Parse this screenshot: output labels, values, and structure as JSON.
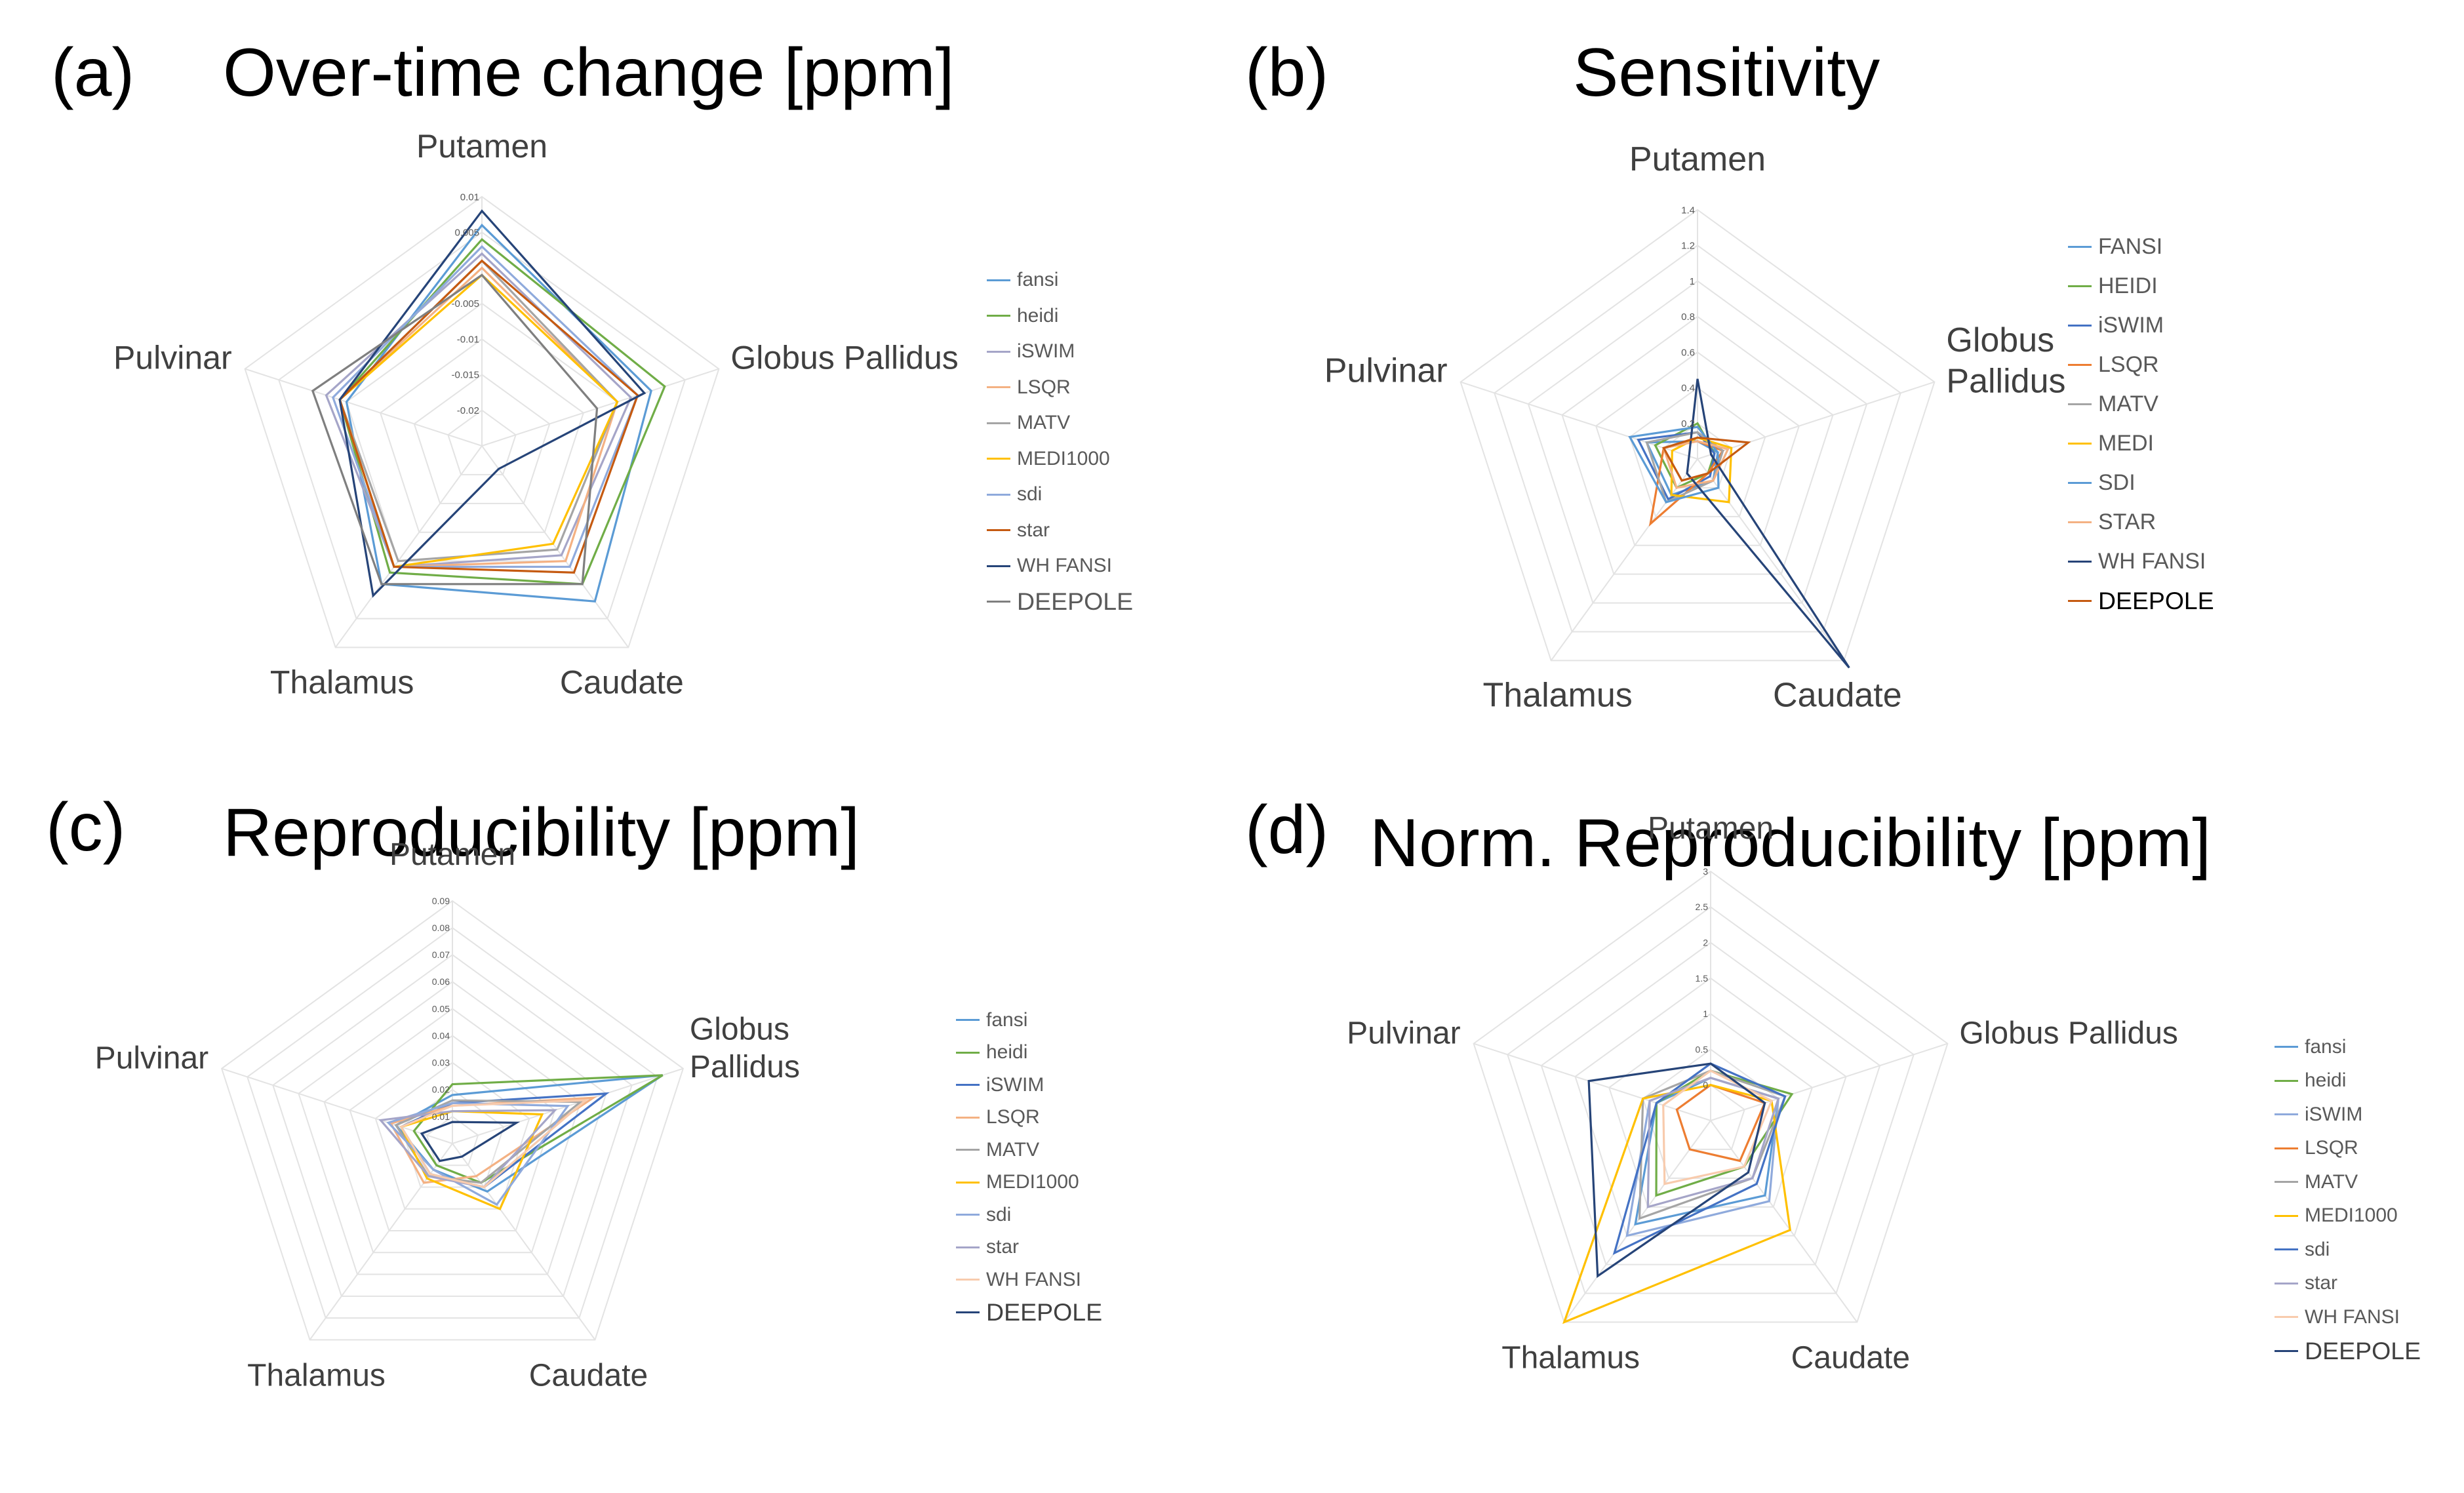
{
  "chart_data": [
    {
      "panel": "(a)",
      "type": "radar",
      "title": "Over-time change [ppm]",
      "categories": [
        "Putamen",
        "Globus Pallidus",
        "Caudate",
        "Thalamus",
        "Pulvinar"
      ],
      "rmin": -0.025,
      "rmax": 0.01,
      "ticks": [
        0.01,
        0.005,
        -0.005,
        -0.01,
        -0.015,
        -0.02
      ],
      "tick_labels": [
        "0.01",
        "0.005",
        "-0.005",
        "-0.01",
        "-0.015",
        "-0.02"
      ],
      "series": [
        {
          "name": "fansi",
          "color": "#5B9BD5",
          "values": [
            0.006,
            0.0,
            0.002,
            -0.001,
            -0.005
          ]
        },
        {
          "name": "heidi",
          "color": "#70AD47",
          "values": [
            0.004,
            0.002,
            -0.001,
            -0.003,
            -0.004
          ]
        },
        {
          "name": "iSWIM",
          "color": "#A5A5C8",
          "values": [
            0.002,
            -0.003,
            -0.006,
            -0.004,
            -0.002
          ]
        },
        {
          "name": "LSQR",
          "color": "#F4B183",
          "values": [
            0.0,
            -0.005,
            -0.005,
            -0.004,
            -0.004
          ]
        },
        {
          "name": "MATV",
          "color": "#A5A5A5",
          "values": [
            0.001,
            -0.005,
            -0.007,
            -0.005,
            -0.004
          ]
        },
        {
          "name": "MEDI1000",
          "color": "#FFC000",
          "values": [
            -0.001,
            -0.005,
            -0.008,
            -0.004,
            -0.004
          ]
        },
        {
          "name": "sdi",
          "color": "#8FAADC",
          "values": [
            0.003,
            -0.002,
            -0.004,
            -0.004,
            -0.003
          ]
        },
        {
          "name": "star",
          "color": "#C55A11",
          "values": [
            0.001,
            -0.002,
            -0.003,
            -0.004,
            -0.004
          ]
        },
        {
          "name": "WH FANSI",
          "color": "#264478",
          "values": [
            0.008,
            -0.001,
            -0.021,
            0.001,
            -0.004
          ]
        },
        {
          "name": "DEEPOLE",
          "color": "#7F7F7F",
          "values": [
            -0.001,
            -0.008,
            -0.001,
            -0.001,
            0.0
          ]
        }
      ],
      "legend_last_large": true
    },
    {
      "panel": "(b)",
      "type": "radar",
      "title": "Sensitivity",
      "categories": [
        "Putamen",
        "Globus Pallidus",
        "Caudate",
        "Thalamus",
        "Pulvinar"
      ],
      "cat_labels": [
        "Putamen",
        "Globus\nPallidus",
        "Caudate",
        "Thalamus",
        "Pulvinar"
      ],
      "rmin": 0,
      "rmax": 1.4,
      "ticks": [
        1.4,
        1.2,
        1,
        0.8,
        0.6,
        0.4,
        0.2
      ],
      "tick_labels": [
        "1.4",
        "1.2",
        "1",
        "0.8",
        "0.6",
        "0.4",
        "0.2"
      ],
      "series": [
        {
          "name": "FANSI",
          "color": "#5B9BD5",
          "values": [
            0.1,
            0.12,
            0.15,
            0.25,
            0.3
          ]
        },
        {
          "name": "HEIDI",
          "color": "#70AD47",
          "values": [
            0.2,
            0.1,
            0.1,
            0.2,
            0.25
          ]
        },
        {
          "name": "iSWIM",
          "color": "#4472C4",
          "values": [
            0.15,
            0.1,
            0.12,
            0.28,
            0.35
          ]
        },
        {
          "name": "LSQR",
          "color": "#ED7D31",
          "values": [
            0.1,
            0.15,
            0.1,
            0.45,
            0.2
          ]
        },
        {
          "name": "MATV",
          "color": "#A5A5A5",
          "values": [
            0.15,
            0.15,
            0.15,
            0.3,
            0.3
          ]
        },
        {
          "name": "MEDI",
          "color": "#FFC000",
          "values": [
            0.12,
            0.2,
            0.3,
            0.25,
            0.15
          ]
        },
        {
          "name": "SDI",
          "color": "#5B9BD5",
          "values": [
            0.18,
            0.12,
            0.2,
            0.3,
            0.4
          ]
        },
        {
          "name": "STAR",
          "color": "#F4B183",
          "values": [
            0.1,
            0.18,
            0.15,
            0.2,
            0.2
          ]
        },
        {
          "name": "WH FANSI",
          "color": "#264478",
          "values": [
            0.45,
            0.08,
            1.45,
            0.1,
            0.05
          ]
        },
        {
          "name": "DEEPOLE",
          "color": "#C55A11",
          "values": [
            0.12,
            0.3,
            0.1,
            0.15,
            0.2
          ]
        }
      ],
      "legend_last_black": true
    },
    {
      "panel": "(c)",
      "type": "radar",
      "title": "Reproducibility [ppm]",
      "categories": [
        "Putamen",
        "Globus Pallidus",
        "Caudate",
        "Thalamus",
        "Pulvinar"
      ],
      "cat_labels": [
        "Putamen",
        "Globus\nPallidus",
        "Caudate",
        "Thalamus",
        "Pulvinar"
      ],
      "rmin": 0,
      "rmax": 0.09,
      "ticks": [
        0.09,
        0.08,
        0.07,
        0.06,
        0.05,
        0.04,
        0.03,
        0.02,
        0.01
      ],
      "tick_labels": [
        "0.09",
        "0.08",
        "0.07",
        "0.06",
        "0.05",
        "0.04",
        "0.03",
        "0.02",
        "0.01"
      ],
      "series": [
        {
          "name": "fansi",
          "color": "#5B9BD5",
          "values": [
            0.018,
            0.082,
            0.022,
            0.012,
            0.022
          ]
        },
        {
          "name": "heidi",
          "color": "#70AD47",
          "values": [
            0.022,
            0.082,
            0.018,
            0.01,
            0.015
          ]
        },
        {
          "name": "iSWIM",
          "color": "#4472C4",
          "values": [
            0.015,
            0.06,
            0.02,
            0.014,
            0.02
          ]
        },
        {
          "name": "LSQR",
          "color": "#F4B183",
          "values": [
            0.014,
            0.055,
            0.015,
            0.018,
            0.024
          ]
        },
        {
          "name": "MATV",
          "color": "#A5A5A5",
          "values": [
            0.016,
            0.05,
            0.018,
            0.015,
            0.022
          ]
        },
        {
          "name": "MEDI1000",
          "color": "#FFC000",
          "values": [
            0.012,
            0.035,
            0.03,
            0.016,
            0.02
          ]
        },
        {
          "name": "sdi",
          "color": "#8FAADC",
          "values": [
            0.015,
            0.045,
            0.028,
            0.012,
            0.025
          ]
        },
        {
          "name": "star",
          "color": "#A5A5C8",
          "values": [
            0.012,
            0.04,
            0.02,
            0.015,
            0.028
          ]
        },
        {
          "name": "WH FANSI",
          "color": "#F8CBAD",
          "values": [
            0.014,
            0.052,
            0.02,
            0.014,
            0.02
          ]
        },
        {
          "name": "DEEPOLE",
          "color": "#264478",
          "values": [
            0.008,
            0.025,
            0.006,
            0.008,
            0.012
          ]
        }
      ],
      "legend_last_large": true
    },
    {
      "panel": "(d)",
      "type": "radar",
      "title": "Norm. Reproducibility [ppm]",
      "categories": [
        "Putamen",
        "Globus Pallidus",
        "Caudate",
        "Thalamus",
        "Pulvinar"
      ],
      "rmin": -0.5,
      "rmax": 3,
      "ticks": [
        3,
        2.5,
        2,
        1.5,
        1,
        0.5,
        0
      ],
      "tick_labels": [
        "3",
        "2.5",
        "2",
        "1.5",
        "1",
        "0.5",
        "0"
      ],
      "series": [
        {
          "name": "fansi",
          "color": "#5B9BD5",
          "values": [
            0.1,
            0.5,
            0.8,
            1.3,
            0.3
          ]
        },
        {
          "name": "heidi",
          "color": "#70AD47",
          "values": [
            0.2,
            0.7,
            0.3,
            0.8,
            0.3
          ]
        },
        {
          "name": "iSWIM",
          "color": "#8FAADC",
          "values": [
            0.1,
            0.5,
            0.9,
            1.5,
            0.4
          ]
        },
        {
          "name": "LSQR",
          "color": "#ED7D31",
          "values": [
            0.0,
            0.3,
            0.2,
            0.0,
            0.0
          ]
        },
        {
          "name": "MATV",
          "color": "#A5A5A5",
          "values": [
            0.2,
            0.6,
            0.5,
            1.2,
            0.5
          ]
        },
        {
          "name": "MEDI1000",
          "color": "#FFC000",
          "values": [
            0.0,
            0.4,
            1.4,
            3.0,
            0.5
          ]
        },
        {
          "name": "sdi",
          "color": "#4472C4",
          "values": [
            0.3,
            0.6,
            0.6,
            1.8,
            0.3
          ]
        },
        {
          "name": "star",
          "color": "#A5A5C8",
          "values": [
            0.1,
            0.5,
            0.5,
            1.0,
            0.4
          ]
        },
        {
          "name": "WH FANSI",
          "color": "#F8CBAD",
          "values": [
            0.2,
            0.4,
            0.3,
            0.6,
            0.2
          ]
        },
        {
          "name": "DEEPOLE",
          "color": "#264478",
          "values": [
            0.3,
            0.3,
            0.4,
            2.2,
            1.3
          ]
        }
      ],
      "legend_last_large": true
    }
  ]
}
